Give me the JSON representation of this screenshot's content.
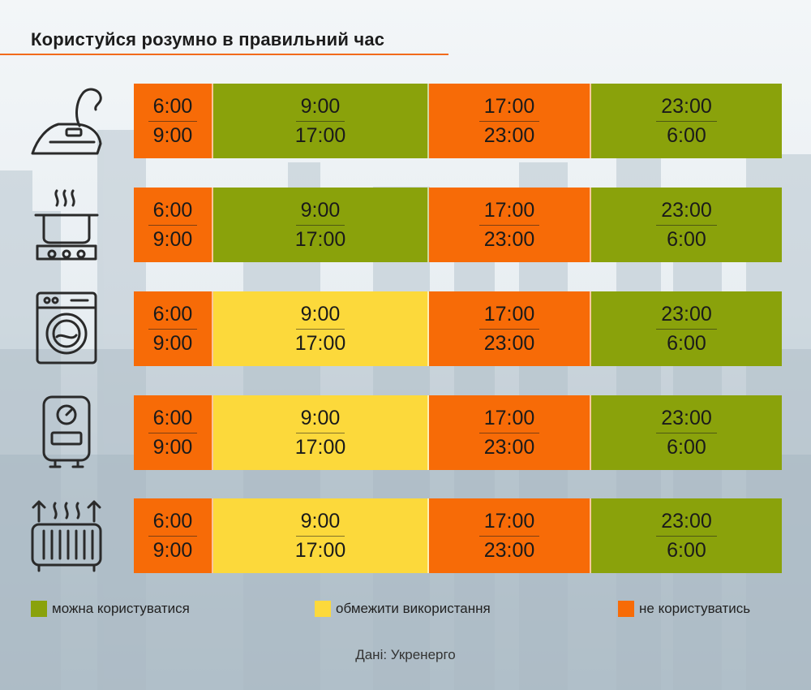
{
  "title": "Користуйся розумно в правильний час",
  "colors": {
    "allowed": "#8aa20b",
    "limit": "#fcd93b",
    "forbidden": "#f76b07",
    "accent_line": "#f26a1b"
  },
  "appliances": [
    {
      "icon": "iron-icon",
      "slots": [
        {
          "from": "6:00",
          "to": "9:00",
          "status": "forbidden"
        },
        {
          "from": "9:00",
          "to": "17:00",
          "status": "allowed"
        },
        {
          "from": "17:00",
          "to": "23:00",
          "status": "forbidden"
        },
        {
          "from": "23:00",
          "to": "6:00",
          "status": "allowed"
        }
      ]
    },
    {
      "icon": "stove-pot-icon",
      "slots": [
        {
          "from": "6:00",
          "to": "9:00",
          "status": "forbidden"
        },
        {
          "from": "9:00",
          "to": "17:00",
          "status": "allowed"
        },
        {
          "from": "17:00",
          "to": "23:00",
          "status": "forbidden"
        },
        {
          "from": "23:00",
          "to": "6:00",
          "status": "allowed"
        }
      ]
    },
    {
      "icon": "washing-machine-icon",
      "slots": [
        {
          "from": "6:00",
          "to": "9:00",
          "status": "forbidden"
        },
        {
          "from": "9:00",
          "to": "17:00",
          "status": "limit"
        },
        {
          "from": "17:00",
          "to": "23:00",
          "status": "forbidden"
        },
        {
          "from": "23:00",
          "to": "6:00",
          "status": "allowed"
        }
      ]
    },
    {
      "icon": "water-heater-icon",
      "slots": [
        {
          "from": "6:00",
          "to": "9:00",
          "status": "forbidden"
        },
        {
          "from": "9:00",
          "to": "17:00",
          "status": "limit"
        },
        {
          "from": "17:00",
          "to": "23:00",
          "status": "forbidden"
        },
        {
          "from": "23:00",
          "to": "6:00",
          "status": "allowed"
        }
      ]
    },
    {
      "icon": "radiator-heater-icon",
      "slots": [
        {
          "from": "6:00",
          "to": "9:00",
          "status": "forbidden"
        },
        {
          "from": "9:00",
          "to": "17:00",
          "status": "limit"
        },
        {
          "from": "17:00",
          "to": "23:00",
          "status": "forbidden"
        },
        {
          "from": "23:00",
          "to": "6:00",
          "status": "allowed"
        }
      ]
    }
  ],
  "legend": {
    "allowed": "можна користуватися",
    "limit": "обмежити використання",
    "forbidden": "не користуватись"
  },
  "source": "Дані: Укренерго"
}
